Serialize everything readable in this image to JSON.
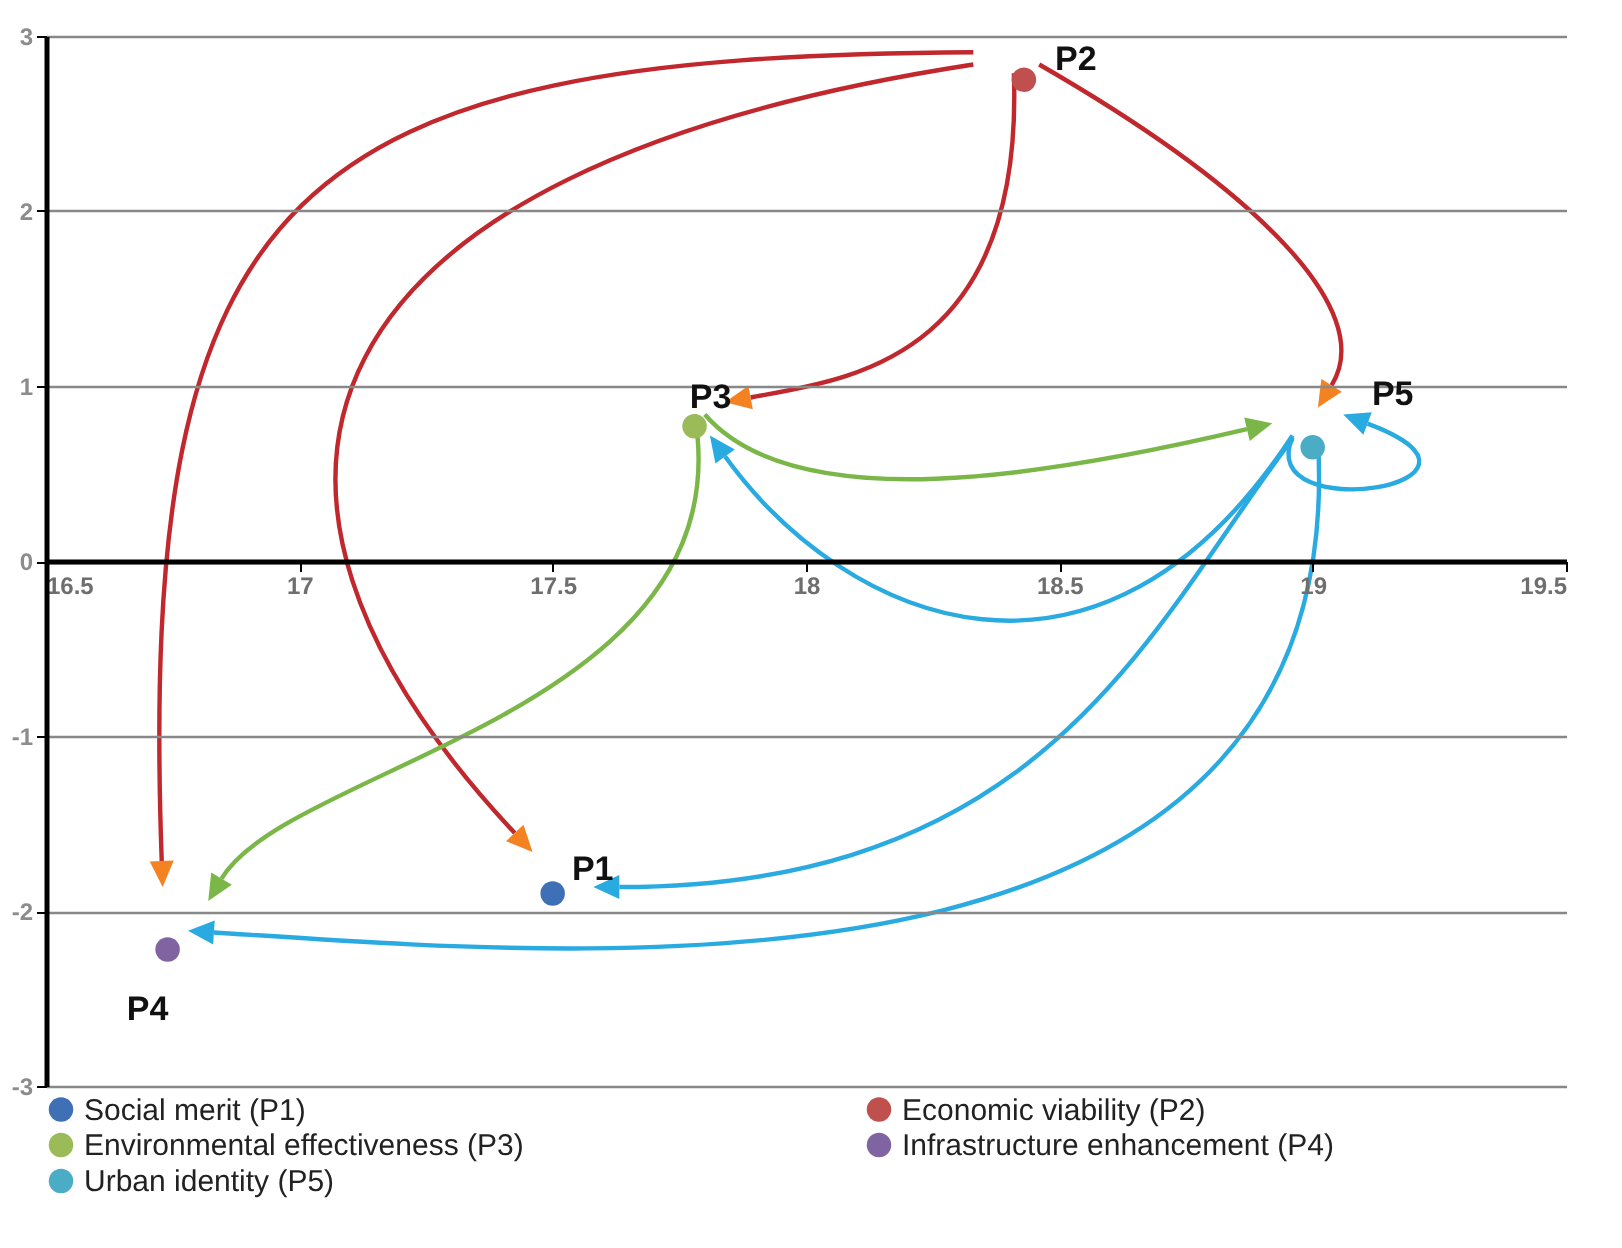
{
  "chart_data": {
    "type": "scatter",
    "xlim": [
      16.5,
      19.5
    ],
    "xticks": [
      16.5,
      17,
      17.5,
      18,
      18.5,
      19,
      19.5
    ],
    "ylim": [
      -3,
      3
    ],
    "yticks": [
      -3,
      -2,
      -1,
      0,
      1,
      2,
      3
    ],
    "grid": "y",
    "legend": "bottom",
    "marker": "circle",
    "series": [
      {
        "name": "Social merit (P1)",
        "color": "#3f6fb5",
        "x": [
          17.5
        ],
        "values": [
          -1.9
        ]
      },
      {
        "name": "Economic viability (P2)",
        "color": "#c0504d",
        "x": [
          18.43
        ],
        "values": [
          2.75
        ]
      },
      {
        "name": "Environmental effectiveness (P3)",
        "color": "#9bbb59",
        "x": [
          17.78
        ],
        "values": [
          0.77
        ]
      },
      {
        "name": "Infrastructure enhancement (P4)",
        "color": "#8064a2",
        "x": [
          16.74
        ],
        "values": [
          -2.22
        ]
      },
      {
        "name": "Urban identity (P5)",
        "color": "#4bacc6",
        "x": [
          19.0
        ],
        "values": [
          0.65
        ]
      }
    ],
    "annotations": [
      {
        "text": "P1",
        "x": 17.5,
        "y": -1.9
      },
      {
        "text": "P2",
        "x": 18.43,
        "y": 2.75
      },
      {
        "text": "P3",
        "x": 17.78,
        "y": 0.77
      },
      {
        "text": "P4",
        "x": 16.74,
        "y": -2.22
      },
      {
        "text": "P5",
        "x": 19.0,
        "y": 0.65
      }
    ]
  }
}
